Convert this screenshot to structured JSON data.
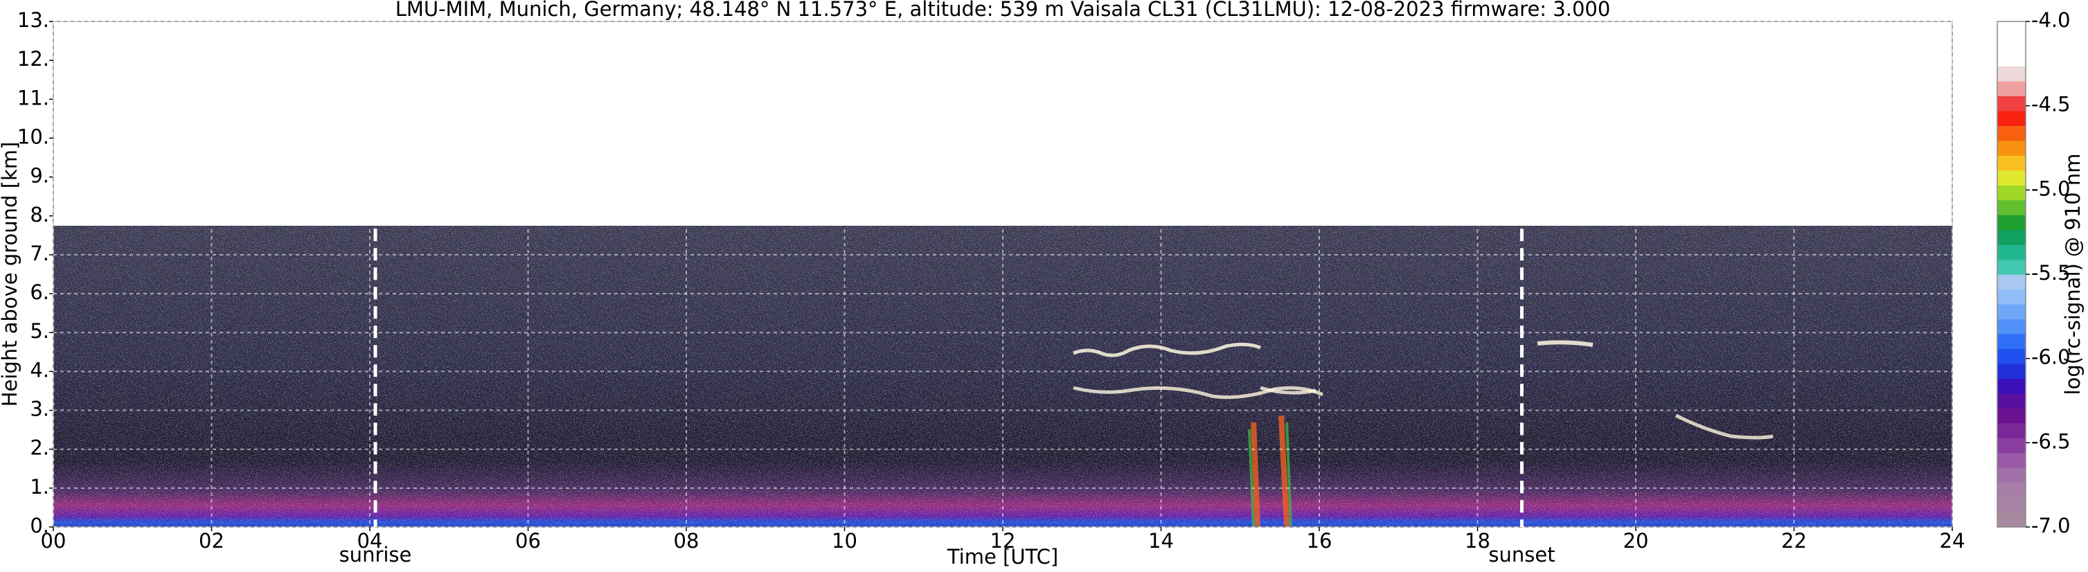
{
  "chart_data": {
    "type": "ceilometer",
    "title": "LMU-MIM, Munich, Germany; 48.148° N 11.573° E, altitude: 539 m    Vaisala CL31 (CL31LMU): 12-08-2023    firmware: 3.000",
    "x_label": "Time [UTC]",
    "y_label": "Height above ground [km]",
    "xlim": [
      0,
      24
    ],
    "xticks": [
      {
        "value": 0,
        "label": "00"
      },
      {
        "value": 2,
        "label": "02"
      },
      {
        "value": 4,
        "label": "04"
      },
      {
        "value": 6,
        "label": "06"
      },
      {
        "value": 8,
        "label": "08"
      },
      {
        "value": 10,
        "label": "10"
      },
      {
        "value": 12,
        "label": "12"
      },
      {
        "value": 14,
        "label": "14"
      },
      {
        "value": 16,
        "label": "16"
      },
      {
        "value": 18,
        "label": "18"
      },
      {
        "value": 20,
        "label": "20"
      },
      {
        "value": 22,
        "label": "22"
      },
      {
        "value": 24,
        "label": "24"
      }
    ],
    "ylim": [
      0,
      13
    ],
    "yticks": [
      {
        "value": 0,
        "label": "0."
      },
      {
        "value": 1,
        "label": "1."
      },
      {
        "value": 2,
        "label": "2."
      },
      {
        "value": 3,
        "label": "3."
      },
      {
        "value": 4,
        "label": "4."
      },
      {
        "value": 5,
        "label": "5."
      },
      {
        "value": 6,
        "label": "6."
      },
      {
        "value": 7,
        "label": "7."
      },
      {
        "value": 8,
        "label": "8."
      },
      {
        "value": 9,
        "label": "9."
      },
      {
        "value": 10,
        "label": "10."
      },
      {
        "value": 11,
        "label": "11."
      },
      {
        "value": 12,
        "label": "12."
      },
      {
        "value": 13,
        "label": "13."
      }
    ],
    "grid": true,
    "annotations": [
      {
        "text": "sunrise",
        "x": 4.07
      },
      {
        "text": "sunset",
        "x": 18.56
      }
    ],
    "colorbar": {
      "label": "log(rc-signal) @ 910 nm",
      "lim": [
        -7.0,
        -4.0
      ],
      "ticks": [
        {
          "value": -7.0,
          "label": "-7.0"
        },
        {
          "value": -6.5,
          "label": "-6.5"
        },
        {
          "value": -6.0,
          "label": "-6.0"
        },
        {
          "value": -5.5,
          "label": "-5.5"
        },
        {
          "value": -5.0,
          "label": "-5.0"
        },
        {
          "value": -4.5,
          "label": "-4.5"
        },
        {
          "value": -4.0,
          "label": "-4.0"
        }
      ],
      "colors": [
        "#a88aa0",
        "#a884a4",
        "#a67ea8",
        "#a270a8",
        "#9a5aa8",
        "#8a3ea0",
        "#7a2898",
        "#6a1090",
        "#5810a0",
        "#3a10b8",
        "#2030d8",
        "#2050f0",
        "#3070f8",
        "#5090f8",
        "#70a8f8",
        "#90bcf8",
        "#a8c8f0",
        "#40c8b0",
        "#20b890",
        "#10a060",
        "#20a030",
        "#60c030",
        "#a0d828",
        "#e0e830",
        "#f8c020",
        "#f89010",
        "#f86010",
        "#f82010",
        "#f04040",
        "#f0a0a0",
        "#ecd8d8",
        "#ffffff",
        "#ffffff",
        "#ffffff"
      ]
    }
  }
}
